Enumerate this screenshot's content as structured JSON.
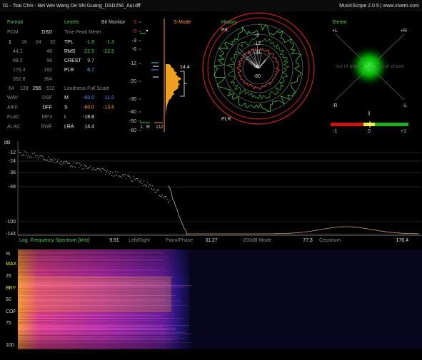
{
  "header": {
    "title": "01 - Tsai Chin - Bei Wei Wang De Shi Guang_DSD256_Aul.dff",
    "app": "MusicScope 2.0.5 | www.xivero.com"
  },
  "format": {
    "title": "Format",
    "pcm": "PCM",
    "dsd": "DSD",
    "bits": [
      "1",
      "16",
      "24",
      "32"
    ],
    "rates": [
      [
        "44.1",
        "48"
      ],
      [
        "88.2",
        "96"
      ],
      [
        "176.4",
        "192"
      ],
      [
        "352.8",
        "384"
      ]
    ],
    "dsd_rates": [
      "64",
      "128",
      "256",
      "512"
    ],
    "containers": [
      [
        "WAV",
        "DSF"
      ],
      [
        "AIFF",
        "DFF"
      ],
      [
        "FLAC",
        "MP3"
      ],
      [
        "ALAC",
        "BWF"
      ]
    ]
  },
  "levels": {
    "title": "Levels",
    "bit_monitor": "Bit Monitor",
    "true_peak": "True Peak Meter",
    "rows": [
      [
        "TPL",
        "-1.8",
        "-1.3"
      ],
      [
        "RMS",
        "-22.5",
        "-22.5"
      ],
      [
        "CREST",
        "9.7"
      ],
      [
        "PLR",
        "6.7"
      ]
    ],
    "loudness": "Loudness Full Scale",
    "loudness_rows": [
      [
        "M",
        "-60.0",
        "-11.0"
      ],
      [
        "S",
        "-60.0",
        "-13.6"
      ],
      [
        "I",
        "-18.8"
      ],
      [
        "LRA",
        "14.4"
      ]
    ]
  },
  "meter": {
    "scale": [
      "3",
      "0",
      "-3",
      "-6",
      "-12",
      "-20",
      "-30",
      "-40",
      "-50",
      "-60"
    ],
    "mode": "S-Mode",
    "lra": "14.4",
    "channels": [
      "L",
      "R",
      "LU"
    ]
  },
  "history": {
    "title": "History",
    "top": "P/L",
    "bottom": "PLR",
    "rings": [
      "-6",
      "-12",
      "-24",
      "-40",
      "-60"
    ]
  },
  "stereo": {
    "title": "Stereo",
    "corners": [
      "+L",
      "+R",
      "-R",
      "-L"
    ],
    "out_of_phase": [
      "out of phase",
      "out of phase"
    ],
    "scale": [
      "-1",
      "0",
      "+1"
    ]
  },
  "spectrum": {
    "unit": "dB",
    "yticks": [
      "-12",
      "-24",
      "-36",
      "-48",
      "-100",
      "-144"
    ],
    "xticks": [
      "9.91",
      "31.27",
      "77.3",
      "176.4"
    ],
    "modes": [
      "Log. Frequency Spectrum [kHz]",
      "Left/Right",
      "Pano/Phase",
      "-200dB Mode",
      "Cepstrum"
    ]
  },
  "spectrogram": {
    "labels": [
      "%",
      "MAX",
      "25",
      "BRY",
      "50",
      "COF",
      "75",
      "100"
    ]
  }
}
